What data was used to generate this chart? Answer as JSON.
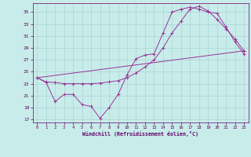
{
  "xlabel": "Windchill (Refroidissement éolien,°C)",
  "background_color": "#c8ecea",
  "grid_color": "#a8d4d4",
  "line_color": "#993399",
  "ylim": [
    16.5,
    36.5
  ],
  "xlim": [
    -0.5,
    23.5
  ],
  "yticks": [
    17,
    19,
    21,
    23,
    25,
    27,
    29,
    31,
    33,
    35
  ],
  "xticks": [
    0,
    1,
    2,
    3,
    4,
    5,
    6,
    7,
    8,
    9,
    10,
    11,
    12,
    13,
    14,
    15,
    16,
    17,
    18,
    19,
    20,
    21,
    22,
    23
  ],
  "line1_x": [
    0,
    1,
    2,
    3,
    4,
    5,
    6,
    7,
    8,
    9,
    10,
    11,
    12,
    13,
    14,
    15,
    16,
    17,
    18,
    19,
    20,
    21,
    22,
    23
  ],
  "line1_y": [
    24.0,
    23.3,
    23.2,
    23.0,
    23.0,
    23.0,
    23.0,
    23.1,
    23.3,
    23.5,
    24.0,
    24.8,
    25.8,
    27.0,
    29.0,
    31.5,
    33.5,
    35.5,
    36.0,
    35.2,
    33.8,
    32.2,
    30.5,
    28.5
  ],
  "line2_x": [
    0,
    1,
    2,
    3,
    4,
    5,
    6,
    7,
    8,
    9,
    10,
    11,
    12,
    13,
    14,
    15,
    16,
    17,
    18,
    19,
    20,
    21,
    22,
    23
  ],
  "line2_y": [
    24.0,
    23.2,
    20.0,
    21.2,
    21.2,
    19.5,
    19.2,
    17.2,
    19.0,
    21.2,
    24.5,
    27.2,
    27.8,
    28.0,
    31.5,
    35.0,
    35.5,
    35.8,
    35.5,
    35.0,
    34.8,
    32.5,
    30.0,
    28.0
  ],
  "line3_x": [
    0,
    23
  ],
  "line3_y": [
    24.0,
    28.5
  ],
  "tick_color": "#660066",
  "xlabel_color": "#660066"
}
